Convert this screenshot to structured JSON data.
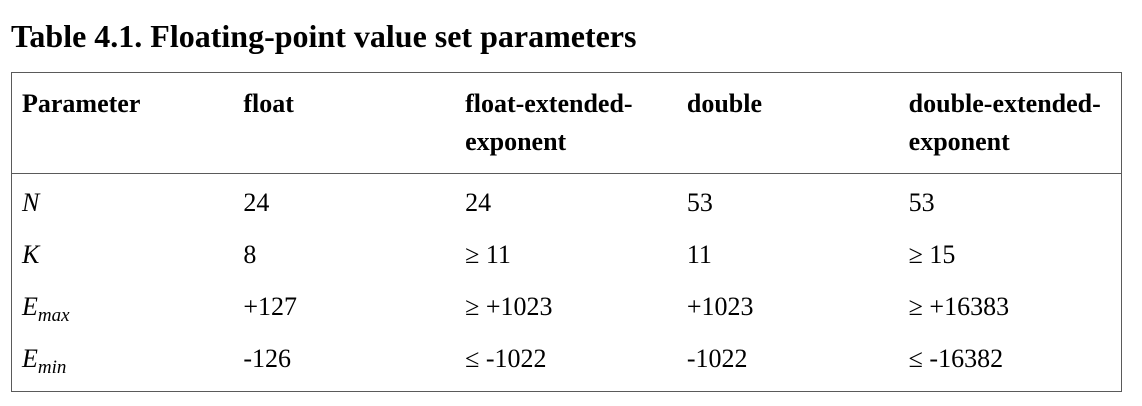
{
  "caption": "Table 4.1. Floating-point value set parameters",
  "table": {
    "headers": [
      "Parameter",
      "float",
      "float-extended-exponent",
      "double",
      "double-extended-exponent"
    ],
    "rows": [
      {
        "param": "N",
        "param_sub": "",
        "values": [
          "24",
          "24",
          "53",
          "53"
        ]
      },
      {
        "param": "K",
        "param_sub": "",
        "values": [
          "8",
          "≥ 11",
          "11",
          "≥ 15"
        ]
      },
      {
        "param": "E",
        "param_sub": "max",
        "values": [
          "+127",
          "≥ +1023",
          "+1023",
          "≥ +16383"
        ]
      },
      {
        "param": "E",
        "param_sub": "min",
        "values": [
          "-126",
          "≤ -1022",
          "-1022",
          "≤ -16382"
        ]
      }
    ]
  }
}
